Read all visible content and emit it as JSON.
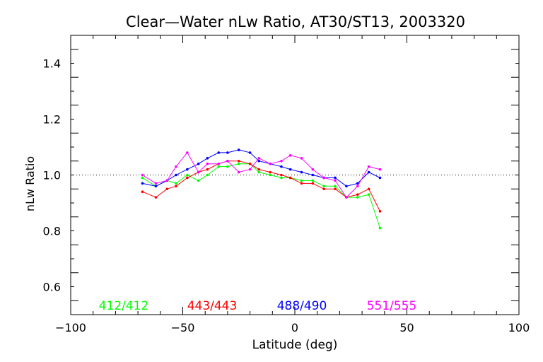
{
  "chart_data": {
    "type": "line",
    "title": "Clear—Water nLw Ratio, AT30/ST13, 2003320",
    "xlabel": "Latitude (deg)",
    "ylabel": "nLw Ratio",
    "xlim": [
      -100,
      100
    ],
    "ylim": [
      0.5,
      1.5
    ],
    "x_ticks": [
      -100,
      -50,
      0,
      50,
      100
    ],
    "x_tick_labels": [
      "−100",
      "−50",
      "0",
      "50",
      "100"
    ],
    "y_ticks": [
      0.6,
      0.8,
      1.0,
      1.2,
      1.4
    ],
    "y_tick_labels": [
      "0.6",
      "0.8",
      "1.0",
      "1.2",
      "1.4"
    ],
    "reference_line": {
      "y": 1.0,
      "style": "dotted"
    },
    "grid": false,
    "legend_position": "bottom, inside plot",
    "x": [
      -68,
      -62,
      -57,
      -53,
      -48,
      -43,
      -39,
      -34,
      -30,
      -25,
      -20,
      -16,
      -11,
      -6,
      -2,
      3,
      8,
      13,
      18,
      23,
      28,
      33,
      38
    ],
    "series": [
      {
        "name": "412/412",
        "color": "#00ff00",
        "values": [
          0.99,
          0.96,
          0.98,
          0.97,
          1.0,
          0.98,
          1.0,
          1.03,
          1.03,
          1.04,
          1.04,
          1.01,
          1.0,
          0.99,
          0.99,
          0.98,
          0.98,
          0.96,
          0.96,
          0.92,
          0.92,
          0.93,
          0.81
        ]
      },
      {
        "name": "443/443",
        "color": "#ff0000",
        "values": [
          0.94,
          0.92,
          0.95,
          0.96,
          0.99,
          1.01,
          1.02,
          1.04,
          1.05,
          1.05,
          1.04,
          1.02,
          1.01,
          1.0,
          0.99,
          0.97,
          0.97,
          0.95,
          0.95,
          0.92,
          0.93,
          0.95,
          0.87
        ]
      },
      {
        "name": "488/490",
        "color": "#0000ff",
        "values": [
          0.97,
          0.96,
          0.98,
          1.0,
          1.02,
          1.04,
          1.06,
          1.08,
          1.08,
          1.09,
          1.08,
          1.05,
          1.04,
          1.03,
          1.02,
          1.01,
          1.0,
          0.99,
          0.99,
          0.96,
          0.97,
          1.01,
          0.99
        ]
      },
      {
        "name": "551/555",
        "color": "#ff00ff",
        "values": [
          1.0,
          0.97,
          0.98,
          1.03,
          1.08,
          1.01,
          1.04,
          1.04,
          1.05,
          1.01,
          1.02,
          1.06,
          1.04,
          1.05,
          1.07,
          1.06,
          1.02,
          0.99,
          0.98,
          0.92,
          0.96,
          1.03,
          1.02
        ]
      }
    ]
  }
}
